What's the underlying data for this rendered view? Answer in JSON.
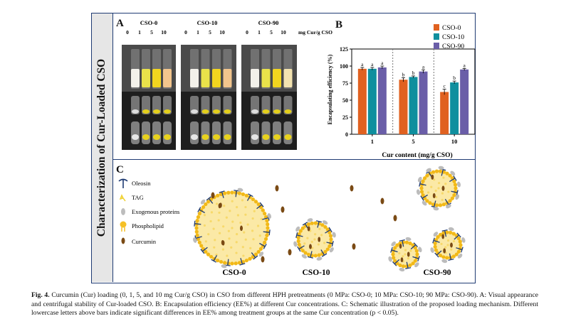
{
  "running_header": "",
  "figure": {
    "sidebar_title": "Characterization of Cur-Loaded CSO",
    "panel_a": {
      "label": "A",
      "groups": [
        "CSO-0",
        "CSO-10",
        "CSO-90"
      ],
      "concentrations": [
        "0",
        "1",
        "5",
        "10"
      ],
      "unit": "mg Cur/g CSO"
    },
    "panel_b": {
      "label": "B"
    },
    "panel_c": {
      "label": "C",
      "legend": [
        "Oleosin",
        "TAG",
        "Exogenous proteins",
        "Phospholipid",
        "Curcumin"
      ],
      "labels": [
        "CSO-0",
        "CSO-10",
        "CSO-90"
      ]
    }
  },
  "chart_data": {
    "type": "bar",
    "title": "",
    "xlabel": "Cur content (mg/g CSO)",
    "ylabel": "Encapsulating efficiency (%)",
    "categories": [
      "1",
      "5",
      "10"
    ],
    "ylim": [
      0,
      125
    ],
    "yticks": [
      "0",
      "25",
      "50",
      "75",
      "100",
      "125"
    ],
    "series": [
      {
        "name": "CSO-0",
        "color": "#e06120",
        "values": [
          96,
          80,
          62
        ],
        "errors": [
          2,
          3,
          4
        ],
        "letters": [
          "a",
          "b",
          "c"
        ]
      },
      {
        "name": "CSO-10",
        "color": "#0f8f9e",
        "values": [
          96,
          84,
          76
        ],
        "errors": [
          2,
          1.5,
          2
        ],
        "letters": [
          "a",
          "b",
          "b"
        ]
      },
      {
        "name": "CSO-90",
        "color": "#6a5ea8",
        "values": [
          98,
          92,
          95
        ],
        "errors": [
          2,
          2.5,
          1.5
        ],
        "letters": [
          "a",
          "a",
          "a"
        ]
      }
    ],
    "legend_position": "top-right"
  },
  "caption": {
    "label": "Fig. 4.",
    "text": " Curcumin (Cur) loading (0, 1, 5, and 10 mg Cur/g CSO) in CSO from different HPH pretreatments (0 MPa: CSO-0; 10 MPa: CSO-10; 90 MPa: CSO-90). A: Visual appearance and centrifugal stability of Cur-loaded CSO. B: Encapsulation efficiency (EE%) at different Cur concentrations. C: Schematic illustration of the proposed loading mechanism. Different lowercase letters above bars indicate significant differences in EE% among treatment groups at the same Cur concentration (p < 0.05)."
  }
}
